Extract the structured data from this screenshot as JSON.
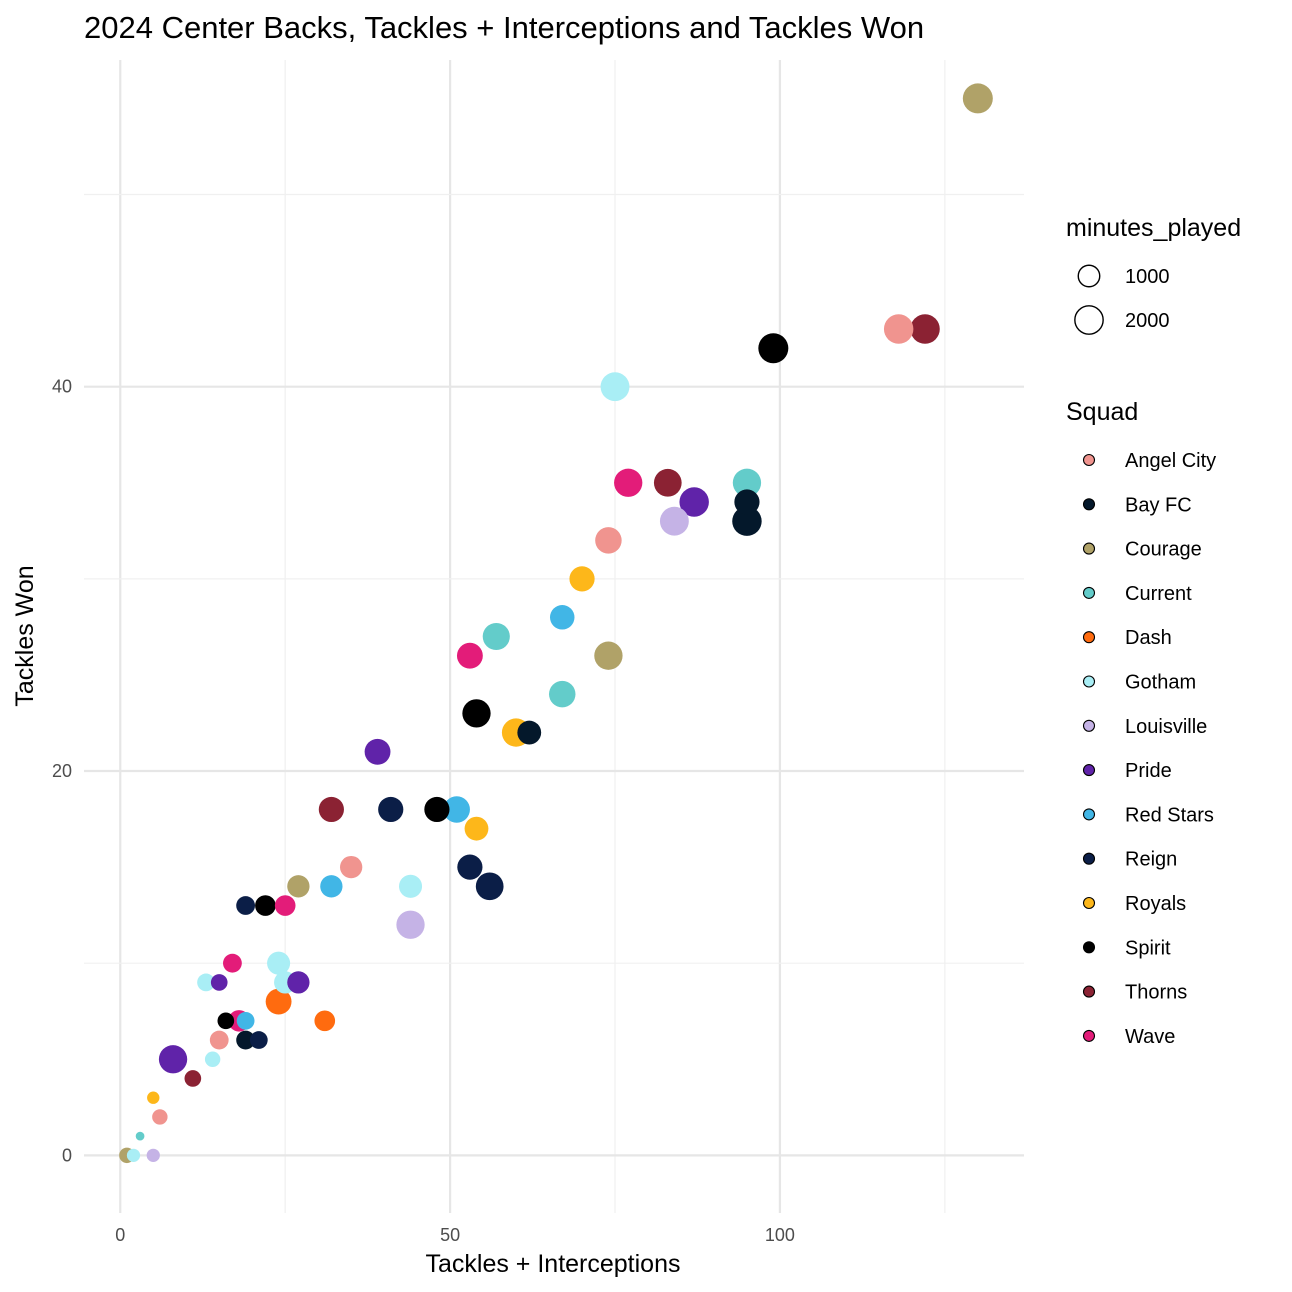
{
  "chart_data": {
    "type": "scatter",
    "title": "2024 Center Backs, Tackles + Interceptions and Tackles Won",
    "xlabel": "Tackles + Interceptions",
    "ylabel": "Tackles Won",
    "xlim": [
      -5.5,
      137
    ],
    "ylim": [
      -3,
      57
    ],
    "x_ticks": [
      0,
      50,
      100
    ],
    "y_ticks": [
      0,
      20,
      40
    ],
    "grid": true,
    "legend_placement": "right",
    "size_legend": {
      "title": "minutes_played",
      "entries": [
        {
          "label": "1000",
          "value": 1000
        },
        {
          "label": "2000",
          "value": 2000
        }
      ]
    },
    "color_legend": {
      "title": "Squad",
      "entries": [
        {
          "label": "Angel City",
          "color": "#f0948f"
        },
        {
          "label": "Bay FC",
          "color": "#04182b"
        },
        {
          "label": "Courage",
          "color": "#b0a268"
        },
        {
          "label": "Current",
          "color": "#63ccca"
        },
        {
          "label": "Dash",
          "color": "#ff6b0f"
        },
        {
          "label": "Gotham",
          "color": "#a9eef5"
        },
        {
          "label": "Louisville",
          "color": "#c5b3e6"
        },
        {
          "label": "Pride",
          "color": "#6023a9"
        },
        {
          "label": "Red Stars",
          "color": "#41b6e6"
        },
        {
          "label": "Reign",
          "color": "#0b1e47"
        },
        {
          "label": "Royals",
          "color": "#fdb71a"
        },
        {
          "label": "Spirit",
          "color": "#000000"
        },
        {
          "label": "Thorns",
          "color": "#8b2233"
        },
        {
          "label": "Wave",
          "color": "#e31c79"
        }
      ]
    },
    "points": [
      {
        "x": 130,
        "y": 55,
        "squad": "Courage",
        "minutes": 2300
      },
      {
        "x": 122,
        "y": 43,
        "squad": "Thorns",
        "minutes": 2200
      },
      {
        "x": 118,
        "y": 43,
        "squad": "Angel City",
        "minutes": 2200
      },
      {
        "x": 99,
        "y": 42,
        "squad": "Spirit",
        "minutes": 2300
      },
      {
        "x": 75,
        "y": 40,
        "squad": "Gotham",
        "minutes": 2100
      },
      {
        "x": 77,
        "y": 35,
        "squad": "Wave",
        "minutes": 2000
      },
      {
        "x": 83,
        "y": 35,
        "squad": "Thorns",
        "minutes": 1900
      },
      {
        "x": 95,
        "y": 35,
        "squad": "Current",
        "minutes": 2000
      },
      {
        "x": 87,
        "y": 34,
        "squad": "Pride",
        "minutes": 2200
      },
      {
        "x": 95,
        "y": 34,
        "squad": "Bay FC",
        "minutes": 1500
      },
      {
        "x": 84,
        "y": 33,
        "squad": "Louisville",
        "minutes": 2100
      },
      {
        "x": 95,
        "y": 33,
        "squad": "Bay FC",
        "minutes": 2200
      },
      {
        "x": 74,
        "y": 32,
        "squad": "Angel City",
        "minutes": 1700
      },
      {
        "x": 70,
        "y": 30,
        "squad": "Royals",
        "minutes": 1500
      },
      {
        "x": 67,
        "y": 28,
        "squad": "Red Stars",
        "minutes": 1400
      },
      {
        "x": 57,
        "y": 27,
        "squad": "Current",
        "minutes": 1800
      },
      {
        "x": 74,
        "y": 26,
        "squad": "Courage",
        "minutes": 2000
      },
      {
        "x": 53,
        "y": 26,
        "squad": "Wave",
        "minutes": 1600
      },
      {
        "x": 67,
        "y": 24,
        "squad": "Current",
        "minutes": 1700
      },
      {
        "x": 54,
        "y": 23,
        "squad": "Spirit",
        "minutes": 2000
      },
      {
        "x": 62,
        "y": 22,
        "squad": "Bay FC",
        "minutes": 1300
      },
      {
        "x": 60,
        "y": 22,
        "squad": "Royals",
        "minutes": 2000
      },
      {
        "x": 39,
        "y": 21,
        "squad": "Pride",
        "minutes": 1600
      },
      {
        "x": 32,
        "y": 18,
        "squad": "Thorns",
        "minutes": 1500
      },
      {
        "x": 41,
        "y": 18,
        "squad": "Reign",
        "minutes": 1500
      },
      {
        "x": 48,
        "y": 18,
        "squad": "Spirit",
        "minutes": 1500
      },
      {
        "x": 51,
        "y": 18,
        "squad": "Red Stars",
        "minutes": 1700
      },
      {
        "x": 54,
        "y": 17,
        "squad": "Royals",
        "minutes": 1300
      },
      {
        "x": 35,
        "y": 15,
        "squad": "Angel City",
        "minutes": 1100
      },
      {
        "x": 53,
        "y": 15,
        "squad": "Reign",
        "minutes": 1500
      },
      {
        "x": 27,
        "y": 14,
        "squad": "Courage",
        "minutes": 1100
      },
      {
        "x": 32,
        "y": 14,
        "squad": "Red Stars",
        "minutes": 1100
      },
      {
        "x": 44,
        "y": 14,
        "squad": "Gotham",
        "minutes": 1200
      },
      {
        "x": 56,
        "y": 14,
        "squad": "Reign",
        "minutes": 1900
      },
      {
        "x": 19,
        "y": 13,
        "squad": "Reign",
        "minutes": 700
      },
      {
        "x": 22,
        "y": 13,
        "squad": "Spirit",
        "minutes": 900
      },
      {
        "x": 25,
        "y": 13,
        "squad": "Wave",
        "minutes": 900
      },
      {
        "x": 44,
        "y": 12,
        "squad": "Louisville",
        "minutes": 2000
      },
      {
        "x": 17,
        "y": 10,
        "squad": "Wave",
        "minutes": 700
      },
      {
        "x": 24,
        "y": 10,
        "squad": "Gotham",
        "minutes": 1200
      },
      {
        "x": 13,
        "y": 9,
        "squad": "Gotham",
        "minutes": 600
      },
      {
        "x": 15,
        "y": 9,
        "squad": "Pride",
        "minutes": 500
      },
      {
        "x": 25,
        "y": 9,
        "squad": "Gotham",
        "minutes": 1100
      },
      {
        "x": 27,
        "y": 9,
        "squad": "Pride",
        "minutes": 1100
      },
      {
        "x": 24,
        "y": 8,
        "squad": "Dash",
        "minutes": 1600
      },
      {
        "x": 16,
        "y": 7,
        "squad": "Spirit",
        "minutes": 500
      },
      {
        "x": 19,
        "y": 7,
        "squad": "Red Stars",
        "minutes": 600
      },
      {
        "x": 18,
        "y": 7,
        "squad": "Wave",
        "minutes": 1000
      },
      {
        "x": 31,
        "y": 7,
        "squad": "Dash",
        "minutes": 900
      },
      {
        "x": 15,
        "y": 6,
        "squad": "Angel City",
        "minutes": 700
      },
      {
        "x": 19,
        "y": 6,
        "squad": "Bay FC",
        "minutes": 700
      },
      {
        "x": 21,
        "y": 6,
        "squad": "Reign",
        "minutes": 600
      },
      {
        "x": 8,
        "y": 5,
        "squad": "Pride",
        "minutes": 2000
      },
      {
        "x": 14,
        "y": 5,
        "squad": "Gotham",
        "minutes": 400
      },
      {
        "x": 11,
        "y": 4,
        "squad": "Thorns",
        "minutes": 500
      },
      {
        "x": 5,
        "y": 3,
        "squad": "Royals",
        "minutes": 200
      },
      {
        "x": 6,
        "y": 2,
        "squad": "Angel City",
        "minutes": 400
      },
      {
        "x": 3,
        "y": 1,
        "squad": "Current",
        "minutes": 50
      },
      {
        "x": 1,
        "y": 0,
        "squad": "Courage",
        "minutes": 400
      },
      {
        "x": 2,
        "y": 0,
        "squad": "Gotham",
        "minutes": 250
      },
      {
        "x": 5,
        "y": 0,
        "squad": "Louisville",
        "minutes": 250
      }
    ]
  }
}
